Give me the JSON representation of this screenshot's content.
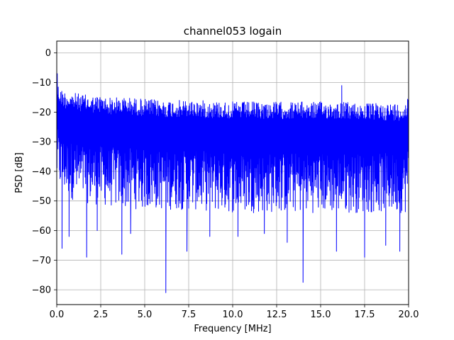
{
  "chart_data": {
    "type": "line",
    "title": "channel053 logain",
    "xlabel": "Frequency [MHz]",
    "ylabel": "PSD [dB]",
    "xlim": [
      0,
      20
    ],
    "ylim": [
      -85,
      4
    ],
    "grid": true,
    "line_color": "#0000ff",
    "x_ticks": [
      0,
      2.5,
      5,
      7.5,
      10,
      12.5,
      15,
      17.5,
      20
    ],
    "x_tick_labels": [
      "0.0",
      "2.5",
      "5.0",
      "7.5",
      "10.0",
      "12.5",
      "15.0",
      "17.5",
      "20.0"
    ],
    "y_ticks": [
      0,
      -10,
      -20,
      -30,
      -40,
      -50,
      -60,
      -70,
      -80
    ],
    "y_tick_labels": [
      "0",
      "−10",
      "−20",
      "−30",
      "−40",
      "−50",
      "−60",
      "−70",
      "−80"
    ],
    "series": [
      {
        "upper_envelope": {
          "x": [
            0,
            0.05,
            0.2,
            0.5,
            1.0,
            1.5,
            2.0,
            2.5,
            3.0,
            4.0,
            5.0,
            6.0,
            7.0,
            8.0,
            10.0,
            12.5,
            15.0,
            16.2,
            17.5,
            19.0,
            19.9,
            20.0
          ],
          "y": [
            -7,
            -10,
            -12,
            -13,
            -13.5,
            -14,
            -14.5,
            -14.5,
            -15,
            -15,
            -15.5,
            -16,
            -16,
            -16,
            -16.5,
            -16.5,
            -16.5,
            -16.5,
            -17,
            -17,
            -17,
            -9
          ]
        },
        "lower_envelope": {
          "x": [
            0,
            0.5,
            1.0,
            2.0,
            3.0,
            5.0,
            7.5,
            10.0,
            12.5,
            15.0,
            17.5,
            20.0
          ],
          "y": [
            -45,
            -48,
            -50,
            -51,
            -52,
            -53,
            -53,
            -54,
            -54,
            -54,
            -54,
            -54
          ]
        },
        "spikes_up": [
          {
            "x": 0.03,
            "y": -7
          },
          {
            "x": 16.2,
            "y": -11
          },
          {
            "x": 20.0,
            "y": -9
          }
        ],
        "spikes_down": [
          {
            "x": 0.3,
            "y": -66
          },
          {
            "x": 0.7,
            "y": -62
          },
          {
            "x": 1.7,
            "y": -69
          },
          {
            "x": 2.3,
            "y": -60
          },
          {
            "x": 3.7,
            "y": -68
          },
          {
            "x": 4.2,
            "y": -61
          },
          {
            "x": 6.2,
            "y": -81
          },
          {
            "x": 7.4,
            "y": -67
          },
          {
            "x": 8.7,
            "y": -62
          },
          {
            "x": 10.3,
            "y": -62
          },
          {
            "x": 11.8,
            "y": -61
          },
          {
            "x": 13.1,
            "y": -64
          },
          {
            "x": 14.0,
            "y": -77.5
          },
          {
            "x": 15.9,
            "y": -67
          },
          {
            "x": 17.5,
            "y": -69
          },
          {
            "x": 18.7,
            "y": -65
          },
          {
            "x": 19.5,
            "y": -67
          }
        ]
      }
    ]
  }
}
